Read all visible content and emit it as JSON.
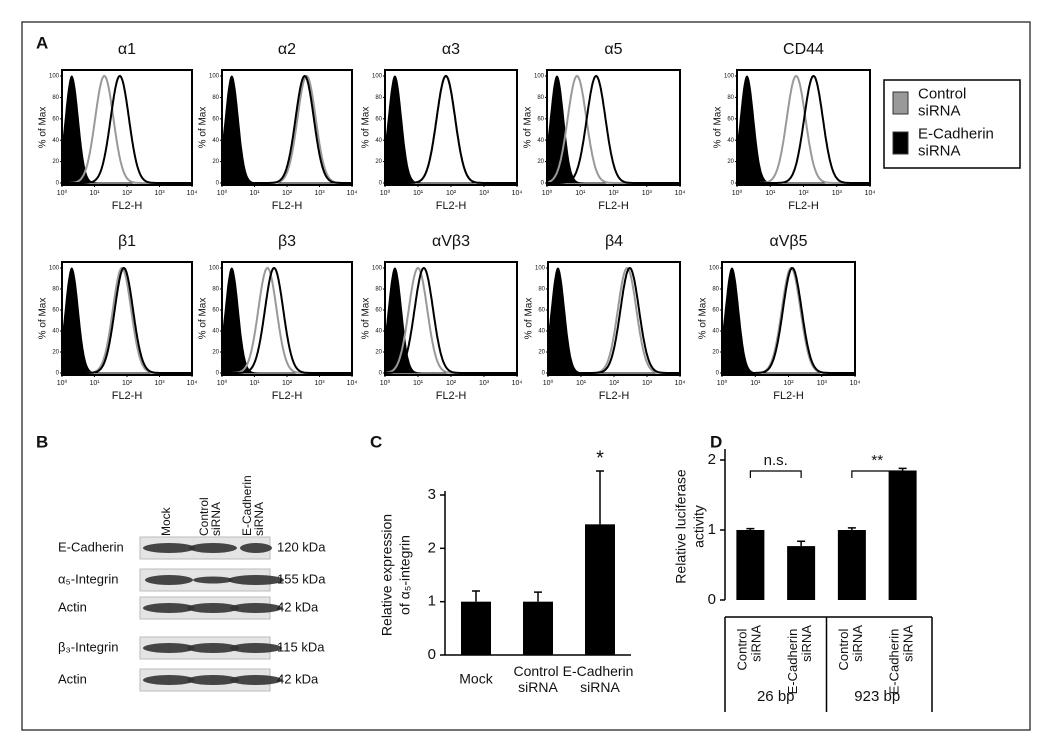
{
  "panel_a": {
    "label": "A",
    "axes": {
      "xlabel": "FL2-H",
      "ylabel": "% of Max",
      "xscale": "log",
      "xlim": [
        1,
        10000
      ],
      "ylim": [
        0,
        100
      ],
      "yticks": [
        0,
        20,
        40,
        60,
        80,
        100
      ],
      "xticks": [
        {
          "value": 1,
          "label": "10⁰"
        },
        {
          "value": 10,
          "label": "10¹"
        },
        {
          "value": 100,
          "label": "10²"
        },
        {
          "value": 1000,
          "label": "10³"
        },
        {
          "value": 10000,
          "label": "10⁴"
        }
      ]
    },
    "legend": [
      {
        "name": "Control siRNA",
        "color": "#999999"
      },
      {
        "name": "E-Cadherin siRNA",
        "color": "#000000"
      }
    ],
    "isotype_color": "#000000",
    "panels": [
      {
        "title": "α1",
        "modes": [
          2,
          20,
          60
        ]
      },
      {
        "title": "α2",
        "modes": [
          2,
          400,
          350
        ]
      },
      {
        "title": "α3",
        "modes": [
          2,
          70,
          70
        ]
      },
      {
        "title": "α5",
        "modes": [
          2,
          8,
          30
        ]
      },
      {
        "title": "CD44",
        "modes": [
          2,
          60,
          200
        ]
      },
      {
        "title": "β1",
        "modes": [
          2,
          70,
          80
        ]
      },
      {
        "title": "β3",
        "modes": [
          2,
          25,
          40
        ]
      },
      {
        "title": "αVβ3",
        "modes": [
          2,
          10,
          15
        ]
      },
      {
        "title": "β4",
        "modes": [
          2,
          250,
          300
        ]
      },
      {
        "title": "αVβ5",
        "modes": [
          2,
          120,
          130
        ]
      }
    ]
  },
  "panel_b": {
    "label": "B",
    "columns": [
      "Mock",
      "Control siRNA",
      "E-Cadherin siRNA"
    ],
    "rows": [
      {
        "name": "E-Cadherin",
        "size": "120 kDa"
      },
      {
        "name": "α₅-Integrin",
        "size": "155 kDa"
      },
      {
        "name": "Actin",
        "size": "42 kDa"
      },
      {
        "name": "β₃-Integrin",
        "size": "115 kDa"
      },
      {
        "name": "Actin",
        "size": "42 kDa"
      }
    ]
  },
  "chart_data": [
    {
      "type": "bar",
      "label": "C",
      "ylabel": [
        "Relative expression",
        "of α₅-integrin"
      ],
      "categories": [
        "Mock",
        "Control siRNA",
        "E-Cadherin siRNA"
      ],
      "values": [
        1.0,
        1.0,
        2.45
      ],
      "errors": [
        0.2,
        0.18,
        1.0
      ],
      "color": "#000000",
      "ylim": [
        0,
        3
      ],
      "yticks": [
        0,
        1,
        2,
        3
      ],
      "annotations": [
        {
          "text": "*",
          "category": 2
        }
      ]
    },
    {
      "type": "bar",
      "label": "D",
      "ylabel": [
        "Relative luciferase",
        "activity"
      ],
      "categories": [
        "Control siRNA",
        "E-Cadherin siRNA",
        "Control siRNA",
        "E-Cadherin siRNA"
      ],
      "values": [
        1.0,
        0.77,
        1.0,
        1.85
      ],
      "errors": [
        0.02,
        0.07,
        0.03,
        0.03
      ],
      "groups": [
        "26 bp",
        "923 bp"
      ],
      "color": "#000000",
      "ylim": [
        0,
        2.1
      ],
      "yticks": [
        0,
        1,
        2
      ],
      "annotations": [
        {
          "text": "n.s.",
          "from": 0,
          "to": 1
        },
        {
          "text": "**",
          "from": 2,
          "to": 3
        }
      ]
    }
  ]
}
